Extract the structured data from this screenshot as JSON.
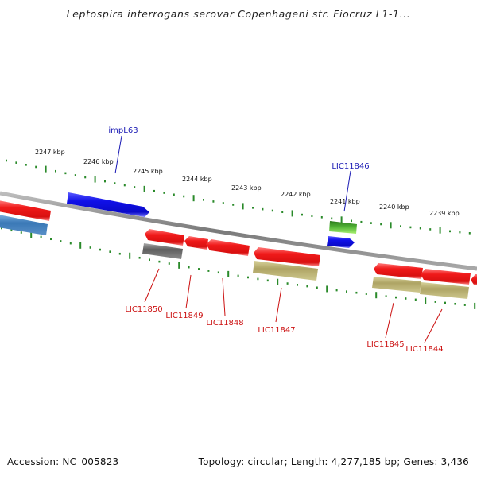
{
  "title": "Leptospira interrogans serovar Copenhageni str. Fiocruz L1-1...",
  "footer": {
    "accession": "Accession: NC_005823",
    "summary": "Topology: circular; Length: 4,277,185 bp; Genes: 3,436"
  },
  "colors": {
    "backbone": "#8a8a8a",
    "scale_ticks": "#2a8a2a",
    "forward_gene_label": "#1a1ab4",
    "reverse_gene_label": "#cc1111",
    "gene_red": "#e81818",
    "gene_blue": "#1414e0",
    "gene_steelblue": "#3a7ab8",
    "gene_gray": "#6e6e6e",
    "gene_khaki": "#b8b070",
    "gene_green": "#3a9a2a"
  },
  "outer_scale_labels": [
    "2247 kbp",
    "2246 kbp",
    "2245 kbp",
    "2244 kbp",
    "2243 kbp",
    "2242 kbp",
    "2241 kbp",
    "2240 kbp",
    "2239 kbp"
  ],
  "forward_gene_labels": [
    "impL63",
    "LIC11846"
  ],
  "reverse_gene_labels": [
    "LIC11850",
    "LIC11849",
    "LIC11848",
    "LIC11847",
    "LIC11845",
    "LIC11844"
  ]
}
